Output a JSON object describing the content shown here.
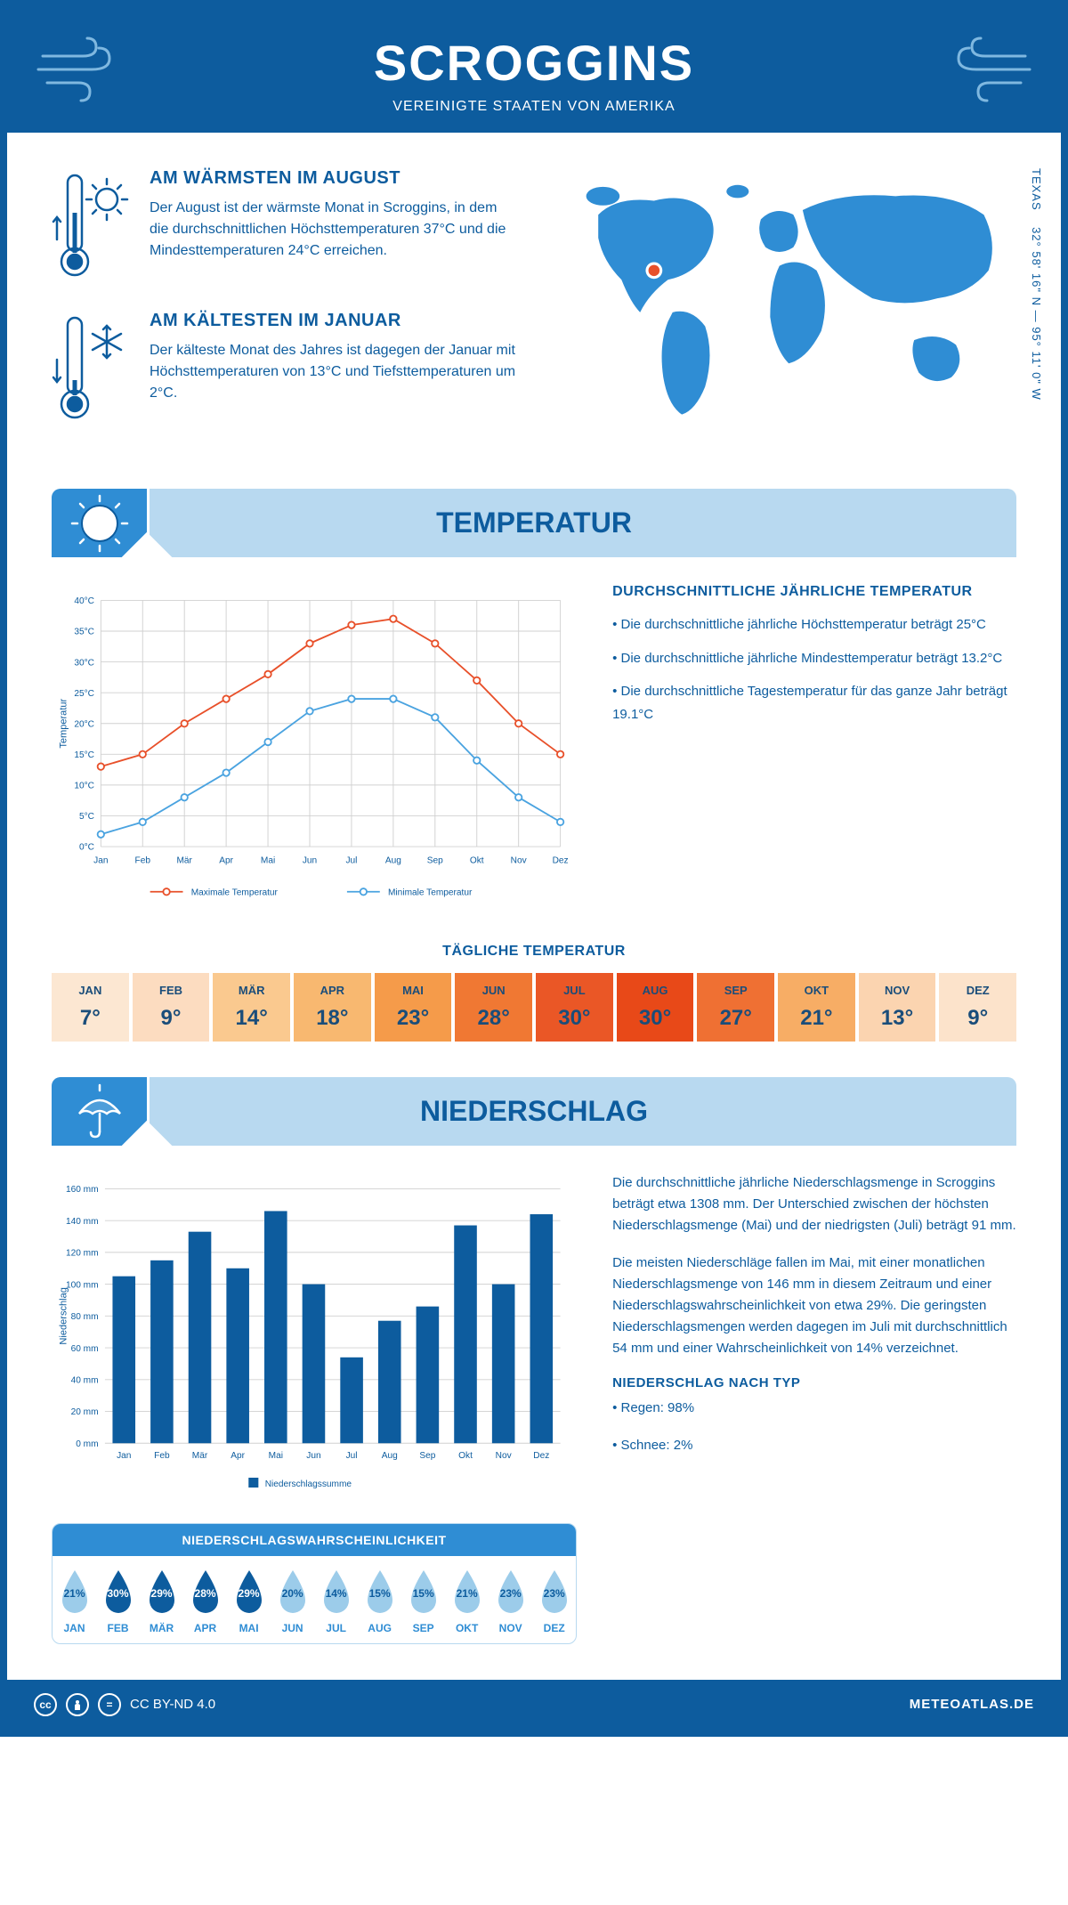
{
  "header": {
    "title": "SCROGGINS",
    "subtitle": "VEREINIGTE STAATEN VON AMERIKA"
  },
  "coords": {
    "lat": "32° 58' 16\" N",
    "lon": "95° 11' 0\" W",
    "region": "TEXAS"
  },
  "warmest": {
    "title": "AM WÄRMSTEN IM AUGUST",
    "text": "Der August ist der wärmste Monat in Scroggins, in dem die durchschnittlichen Höchsttemperaturen 37°C und die Mindesttemperaturen 24°C erreichen."
  },
  "coldest": {
    "title": "AM KÄLTESTEN IM JANUAR",
    "text": "Der kälteste Monat des Jahres ist dagegen der Januar mit Höchsttemperaturen von 13°C und Tiefsttemperaturen um 2°C."
  },
  "sections": {
    "temperature": "TEMPERATUR",
    "precipitation": "NIEDERSCHLAG"
  },
  "temp_chart": {
    "type": "line",
    "months": [
      "Jan",
      "Feb",
      "Mär",
      "Apr",
      "Mai",
      "Jun",
      "Jul",
      "Aug",
      "Sep",
      "Okt",
      "Nov",
      "Dez"
    ],
    "max_series": {
      "label": "Maximale Temperatur",
      "color": "#e8502a",
      "values": [
        13,
        15,
        20,
        24,
        28,
        33,
        36,
        37,
        33,
        27,
        20,
        15
      ]
    },
    "min_series": {
      "label": "Minimale Temperatur",
      "color": "#4aa3e0",
      "values": [
        2,
        4,
        8,
        12,
        17,
        22,
        24,
        24,
        21,
        14,
        8,
        4
      ]
    },
    "ylabel": "Temperatur",
    "ylim": [
      0,
      40
    ],
    "ytick_step": 5,
    "grid_color": "#d0d0d0",
    "background_color": "#ffffff",
    "line_width": 2,
    "marker_size": 4
  },
  "temp_info": {
    "heading": "DURCHSCHNITTLICHE JÄHRLICHE TEMPERATUR",
    "bullets": [
      "• Die durchschnittliche jährliche Höchsttemperatur beträgt 25°C",
      "• Die durchschnittliche jährliche Mindesttemperatur beträgt 13.2°C",
      "• Die durchschnittliche Tagestemperatur für das ganze Jahr beträgt 19.1°C"
    ]
  },
  "daily_temp": {
    "heading": "TÄGLICHE TEMPERATUR",
    "months": [
      "JAN",
      "FEB",
      "MÄR",
      "APR",
      "MAI",
      "JUN",
      "JUL",
      "AUG",
      "SEP",
      "OKT",
      "NOV",
      "DEZ"
    ],
    "values": [
      "7°",
      "9°",
      "14°",
      "18°",
      "23°",
      "28°",
      "30°",
      "30°",
      "27°",
      "21°",
      "13°",
      "9°"
    ],
    "colors": [
      "#fce7d2",
      "#fcdcc0",
      "#fac98f",
      "#f8b870",
      "#f59b4a",
      "#f07833",
      "#ea5726",
      "#e84918",
      "#ef7033",
      "#f7ad65",
      "#fbd4b0",
      "#fce3cb"
    ]
  },
  "precip_chart": {
    "type": "bar",
    "months": [
      "Jan",
      "Feb",
      "Mär",
      "Apr",
      "Mai",
      "Jun",
      "Jul",
      "Aug",
      "Sep",
      "Okt",
      "Nov",
      "Dez"
    ],
    "values": [
      105,
      115,
      133,
      110,
      146,
      100,
      54,
      77,
      86,
      137,
      100,
      144
    ],
    "bar_color": "#0d5c9e",
    "ylabel": "Niederschlag",
    "legend": "Niederschlagssumme",
    "ylim": [
      0,
      160
    ],
    "ytick_step": 20,
    "grid_color": "#d0d0d0",
    "bar_width": 0.6
  },
  "precip_text": {
    "p1": "Die durchschnittliche jährliche Niederschlagsmenge in Scroggins beträgt etwa 1308 mm. Der Unterschied zwischen der höchsten Niederschlagsmenge (Mai) und der niedrigsten (Juli) beträgt 91 mm.",
    "p2": "Die meisten Niederschläge fallen im Mai, mit einer monatlichen Niederschlagsmenge von 146 mm in diesem Zeitraum und einer Niederschlagswahrscheinlichkeit von etwa 29%. Die geringsten Niederschlagsmengen werden dagegen im Juli mit durchschnittlich 54 mm und einer Wahrscheinlichkeit von 14% verzeichnet.",
    "type_heading": "NIEDERSCHLAG NACH TYP",
    "type_lines": [
      "• Regen: 98%",
      "• Schnee: 2%"
    ]
  },
  "precip_prob": {
    "heading": "NIEDERSCHLAGSWAHRSCHEINLICHKEIT",
    "months": [
      "JAN",
      "FEB",
      "MÄR",
      "APR",
      "MAI",
      "JUN",
      "JUL",
      "AUG",
      "SEP",
      "OKT",
      "NOV",
      "DEZ"
    ],
    "values": [
      21,
      30,
      29,
      28,
      29,
      20,
      14,
      15,
      15,
      21,
      23,
      23
    ],
    "dark_fill": "#0d5c9e",
    "dark_text": "#ffffff",
    "light_fill": "#9cccea",
    "light_text": "#0d5c9e",
    "threshold": 25
  },
  "footer": {
    "license": "CC BY-ND 4.0",
    "site": "METEOATLAS.DE"
  },
  "colors": {
    "primary": "#0d5c9e",
    "accent": "#2f8dd4",
    "light_blue": "#b8d9f0",
    "orange": "#e8502a"
  }
}
